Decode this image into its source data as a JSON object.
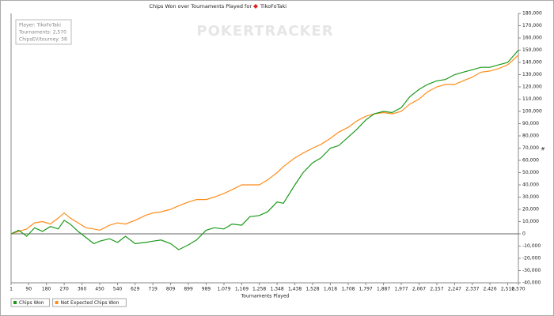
{
  "chart_data": {
    "type": "line",
    "title": "Chips Won over Tournaments Played for",
    "player": "TikoFoTaki",
    "watermark": "POKERTRACKER",
    "info": [
      "Player: TikoFoTaki",
      "Tournaments: 2,570",
      "ChipsEV/tourney: 58"
    ],
    "x_label": "Tournaments Played",
    "y_label": "#",
    "x": [
      1,
      40,
      80,
      120,
      160,
      200,
      240,
      270,
      300,
      340,
      380,
      420,
      450,
      500,
      540,
      580,
      629,
      680,
      719,
      760,
      809,
      850,
      899,
      940,
      989,
      1030,
      1079,
      1120,
      1169,
      1210,
      1258,
      1300,
      1348,
      1380,
      1438,
      1480,
      1528,
      1570,
      1618,
      1660,
      1708,
      1750,
      1797,
      1840,
      1887,
      1930,
      1977,
      2020,
      2067,
      2110,
      2157,
      2200,
      2247,
      2290,
      2337,
      2380,
      2426,
      2470,
      2516,
      2570
    ],
    "series": [
      {
        "name": "Chips Won",
        "color": "#1a9a1a",
        "values": [
          0,
          3000,
          -2000,
          5000,
          2000,
          6000,
          4000,
          11000,
          8000,
          2000,
          -3000,
          -8000,
          -6000,
          -4000,
          -7000,
          -2000,
          -8000,
          -7000,
          -6000,
          -5000,
          -8000,
          -13000,
          -9000,
          -5000,
          3000,
          5000,
          4000,
          8000,
          7000,
          14000,
          15000,
          18000,
          26000,
          25000,
          40000,
          50000,
          58000,
          62000,
          70000,
          72000,
          79000,
          85000,
          93000,
          98000,
          100000,
          99000,
          103000,
          112000,
          118000,
          122000,
          125000,
          126000,
          130000,
          132000,
          134000,
          136000,
          136000,
          138000,
          140000,
          150000
        ]
      },
      {
        "name": "Net Expected Chips Won",
        "color": "#ff8c1a",
        "values": [
          0,
          2000,
          4000,
          9000,
          10000,
          8000,
          13000,
          17000,
          13000,
          9000,
          5000,
          4000,
          3000,
          7000,
          9000,
          8000,
          11000,
          15000,
          17000,
          18000,
          20000,
          23000,
          26000,
          28000,
          28000,
          30000,
          33000,
          36000,
          40000,
          40000,
          40000,
          44000,
          50000,
          55000,
          62000,
          66000,
          70000,
          73000,
          78000,
          83000,
          87000,
          92000,
          96000,
          98000,
          99000,
          98000,
          100000,
          106000,
          110000,
          116000,
          120000,
          122000,
          122000,
          125000,
          128000,
          132000,
          133000,
          135000,
          138000,
          146000
        ]
      }
    ],
    "xlim": [
      1,
      2570
    ],
    "xticks": [
      1,
      90,
      180,
      270,
      360,
      450,
      540,
      629,
      719,
      809,
      899,
      989,
      {
        "value": 1079,
        "label": "1,079"
      },
      {
        "value": 1169,
        "label": "1,169"
      },
      {
        "value": 1258,
        "label": "1,258"
      },
      {
        "value": 1348,
        "label": "1,348"
      },
      {
        "value": 1438,
        "label": "1,438"
      },
      {
        "value": 1528,
        "label": "1,528"
      },
      {
        "value": 1618,
        "label": "1,618"
      },
      {
        "value": 1708,
        "label": "1,708"
      },
      {
        "value": 1797,
        "label": "1,797"
      },
      {
        "value": 1887,
        "label": "1,887"
      },
      {
        "value": 1977,
        "label": "1,977"
      },
      {
        "value": 2067,
        "label": "2,067"
      },
      {
        "value": 2157,
        "label": "2,157"
      },
      {
        "value": 2247,
        "label": "2,247"
      },
      {
        "value": 2337,
        "label": "2,337"
      },
      {
        "value": 2426,
        "label": "2,426"
      },
      {
        "value": 2516,
        "label": "2,516"
      },
      {
        "value": 2570,
        "label": "2,570"
      }
    ],
    "ylim": [
      -40000,
      180000
    ],
    "yticks": [
      {
        "value": -40000,
        "label": "-40,000"
      },
      {
        "value": -30000,
        "label": "-30,000"
      },
      {
        "value": -20000,
        "label": "-20,000"
      },
      {
        "value": -10000,
        "label": "-10,000"
      },
      0,
      {
        "value": 10000,
        "label": "10,000"
      },
      {
        "value": 20000,
        "label": "20,000"
      },
      {
        "value": 30000,
        "label": "30,000"
      },
      {
        "value": 40000,
        "label": "40,000"
      },
      {
        "value": 50000,
        "label": "50,000"
      },
      {
        "value": 60000,
        "label": "60,000"
      },
      {
        "value": 70000,
        "label": "70,000"
      },
      {
        "value": 80000,
        "label": "80,000"
      },
      {
        "value": 90000,
        "label": "90,000"
      },
      {
        "value": 100000,
        "label": "100,000"
      },
      {
        "value": 110000,
        "label": "110,000"
      },
      {
        "value": 120000,
        "label": "120,000"
      },
      {
        "value": 130000,
        "label": "130,000"
      },
      {
        "value": 140000,
        "label": "140,000"
      },
      {
        "value": 150000,
        "label": "150,000"
      },
      {
        "value": 160000,
        "label": "160,000"
      },
      {
        "value": 170000,
        "label": "170,000"
      },
      {
        "value": 180000,
        "label": "180,000"
      }
    ],
    "grid": false
  }
}
